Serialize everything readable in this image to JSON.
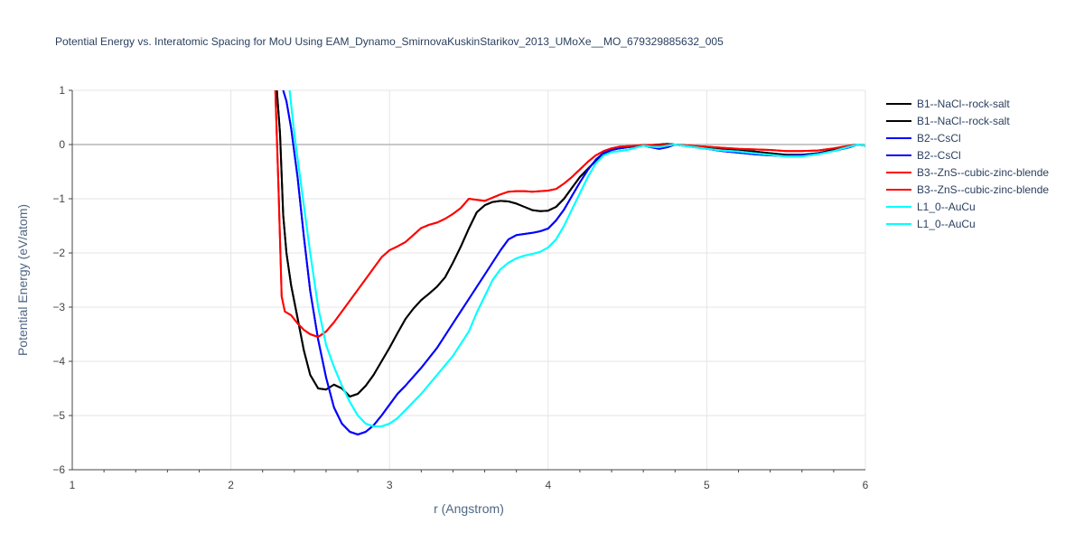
{
  "chart_data": {
    "type": "line",
    "title": "Potential Energy vs. Interatomic Spacing for MoU Using EAM_Dynamo_SmirnovaKuskinStarikov_2013_UMoXe__MO_679329885632_005",
    "xlabel": "r (Angstrom)",
    "ylabel": "Potential Energy (eV/atom)",
    "xlim": [
      1,
      6
    ],
    "ylim": [
      -6,
      1
    ],
    "x_ticks": [
      1,
      2,
      3,
      4,
      5,
      6
    ],
    "y_ticks": [
      -6,
      -5,
      -4,
      -3,
      -2,
      -1,
      0,
      1
    ],
    "x_tick_labels": [
      "1",
      "2",
      "3",
      "4",
      "5",
      "6"
    ],
    "y_tick_labels": [
      "−6",
      "−5",
      "−4",
      "−3",
      "−2",
      "−1",
      "0",
      "1"
    ],
    "grid": true,
    "legend_position": "right",
    "series": [
      {
        "name": "B1--NaCl--rock-salt",
        "color": "#000000",
        "x": [
          2.29,
          2.31,
          2.33,
          2.35,
          2.38,
          2.42,
          2.46,
          2.5,
          2.55,
          2.6,
          2.65,
          2.7,
          2.75,
          2.8,
          2.85,
          2.9,
          2.95,
          3.0,
          3.05,
          3.1,
          3.15,
          3.2,
          3.25,
          3.3,
          3.35,
          3.4,
          3.45,
          3.5,
          3.55,
          3.6,
          3.65,
          3.7,
          3.75,
          3.8,
          3.85,
          3.9,
          3.95,
          4.0,
          4.05,
          4.1,
          4.15,
          4.2,
          4.25,
          4.3,
          4.35,
          4.4,
          4.45,
          4.5,
          4.55,
          4.6,
          4.65,
          4.7,
          4.75,
          4.8,
          4.9,
          5.0,
          5.1,
          5.2,
          5.3,
          5.4,
          5.5,
          5.6,
          5.7,
          5.8,
          5.9,
          5.95,
          6.0
        ],
        "y": [
          1.0,
          0.2,
          -1.3,
          -2.0,
          -2.6,
          -3.2,
          -3.8,
          -4.25,
          -4.5,
          -4.52,
          -4.43,
          -4.5,
          -4.65,
          -4.6,
          -4.45,
          -4.25,
          -4.0,
          -3.75,
          -3.48,
          -3.22,
          -3.03,
          -2.87,
          -2.75,
          -2.62,
          -2.45,
          -2.18,
          -1.88,
          -1.55,
          -1.25,
          -1.12,
          -1.06,
          -1.04,
          -1.05,
          -1.09,
          -1.15,
          -1.21,
          -1.23,
          -1.22,
          -1.15,
          -1.0,
          -0.8,
          -0.6,
          -0.45,
          -0.3,
          -0.18,
          -0.1,
          -0.07,
          -0.05,
          -0.03,
          -0.02,
          -0.01,
          0.0,
          0.01,
          0.0,
          -0.04,
          -0.07,
          -0.09,
          -0.11,
          -0.13,
          -0.16,
          -0.19,
          -0.19,
          -0.16,
          -0.1,
          -0.03,
          0.0,
          -0.02
        ]
      },
      {
        "name": "B1--NaCl--rock-salt",
        "color": "#000000",
        "x": [
          2.29,
          2.31,
          2.33,
          2.35,
          2.38,
          2.42,
          2.46,
          2.5,
          2.55,
          2.6,
          2.65,
          2.7,
          2.75,
          2.8,
          2.85,
          2.9,
          2.95,
          3.0,
          3.05,
          3.1,
          3.15,
          3.2,
          3.25,
          3.3,
          3.35,
          3.4,
          3.45,
          3.5,
          3.55,
          3.6,
          3.65,
          3.7,
          3.75,
          3.8,
          3.85,
          3.9,
          3.95,
          4.0,
          4.05,
          4.1,
          4.15,
          4.2,
          4.25,
          4.3,
          4.35,
          4.4,
          4.45,
          4.5,
          4.55,
          4.6,
          4.65,
          4.7,
          4.75,
          4.8,
          4.9,
          5.0,
          5.1,
          5.2,
          5.3,
          5.4,
          5.5,
          5.6,
          5.7,
          5.8,
          5.9,
          5.95,
          6.0
        ],
        "y": [
          1.0,
          0.2,
          -1.3,
          -2.0,
          -2.6,
          -3.2,
          -3.8,
          -4.25,
          -4.5,
          -4.52,
          -4.43,
          -4.5,
          -4.65,
          -4.6,
          -4.45,
          -4.25,
          -4.0,
          -3.75,
          -3.48,
          -3.22,
          -3.03,
          -2.87,
          -2.75,
          -2.62,
          -2.45,
          -2.18,
          -1.88,
          -1.55,
          -1.25,
          -1.12,
          -1.06,
          -1.04,
          -1.05,
          -1.09,
          -1.15,
          -1.21,
          -1.23,
          -1.22,
          -1.15,
          -1.0,
          -0.8,
          -0.6,
          -0.45,
          -0.3,
          -0.18,
          -0.1,
          -0.07,
          -0.05,
          -0.03,
          -0.02,
          -0.01,
          0.0,
          0.01,
          0.0,
          -0.04,
          -0.07,
          -0.09,
          -0.11,
          -0.13,
          -0.16,
          -0.19,
          -0.19,
          -0.16,
          -0.1,
          -0.03,
          0.0,
          -0.02
        ]
      },
      {
        "name": "B2--CsCl",
        "color": "#0000ff",
        "x": [
          2.33,
          2.35,
          2.38,
          2.42,
          2.46,
          2.5,
          2.55,
          2.6,
          2.65,
          2.7,
          2.75,
          2.8,
          2.85,
          2.9,
          2.95,
          3.0,
          3.05,
          3.1,
          3.2,
          3.3,
          3.4,
          3.5,
          3.6,
          3.7,
          3.75,
          3.8,
          3.85,
          3.9,
          3.95,
          4.0,
          4.05,
          4.1,
          4.15,
          4.2,
          4.25,
          4.3,
          4.35,
          4.4,
          4.45,
          4.5,
          4.55,
          4.6,
          4.65,
          4.7,
          4.75,
          4.8,
          4.9,
          5.0,
          5.1,
          5.2,
          5.3,
          5.4,
          5.5,
          5.6,
          5.7,
          5.8,
          5.9,
          5.95,
          6.0
        ],
        "y": [
          1.0,
          0.8,
          0.3,
          -0.6,
          -1.7,
          -2.7,
          -3.6,
          -4.3,
          -4.85,
          -5.15,
          -5.3,
          -5.35,
          -5.3,
          -5.18,
          -5.0,
          -4.8,
          -4.6,
          -4.45,
          -4.12,
          -3.75,
          -3.3,
          -2.85,
          -2.4,
          -1.95,
          -1.75,
          -1.67,
          -1.65,
          -1.63,
          -1.6,
          -1.55,
          -1.4,
          -1.2,
          -0.95,
          -0.7,
          -0.47,
          -0.28,
          -0.15,
          -0.1,
          -0.07,
          -0.05,
          -0.03,
          -0.02,
          -0.05,
          -0.08,
          -0.05,
          0.0,
          -0.04,
          -0.08,
          -0.12,
          -0.15,
          -0.18,
          -0.2,
          -0.21,
          -0.2,
          -0.17,
          -0.12,
          -0.05,
          0.0,
          -0.02
        ]
      },
      {
        "name": "B2--CsCl",
        "color": "#0000ff",
        "x": [
          2.33,
          2.35,
          2.38,
          2.42,
          2.46,
          2.5,
          2.55,
          2.6,
          2.65,
          2.7,
          2.75,
          2.8,
          2.85,
          2.9,
          2.95,
          3.0,
          3.05,
          3.1,
          3.2,
          3.3,
          3.4,
          3.5,
          3.6,
          3.7,
          3.75,
          3.8,
          3.85,
          3.9,
          3.95,
          4.0,
          4.05,
          4.1,
          4.15,
          4.2,
          4.25,
          4.3,
          4.35,
          4.4,
          4.45,
          4.5,
          4.55,
          4.6,
          4.65,
          4.7,
          4.75,
          4.8,
          4.9,
          5.0,
          5.1,
          5.2,
          5.3,
          5.4,
          5.5,
          5.6,
          5.7,
          5.8,
          5.9,
          5.95,
          6.0
        ],
        "y": [
          1.0,
          0.8,
          0.3,
          -0.6,
          -1.7,
          -2.7,
          -3.6,
          -4.3,
          -4.85,
          -5.15,
          -5.3,
          -5.35,
          -5.3,
          -5.18,
          -5.0,
          -4.8,
          -4.6,
          -4.45,
          -4.12,
          -3.75,
          -3.3,
          -2.85,
          -2.4,
          -1.95,
          -1.75,
          -1.67,
          -1.65,
          -1.63,
          -1.6,
          -1.55,
          -1.4,
          -1.2,
          -0.95,
          -0.7,
          -0.47,
          -0.28,
          -0.15,
          -0.1,
          -0.07,
          -0.05,
          -0.03,
          -0.02,
          -0.05,
          -0.08,
          -0.05,
          0.0,
          -0.04,
          -0.08,
          -0.12,
          -0.15,
          -0.18,
          -0.2,
          -0.21,
          -0.2,
          -0.17,
          -0.12,
          -0.05,
          0.0,
          -0.02
        ]
      },
      {
        "name": "B3--ZnS--cubic-zinc-blende",
        "color": "#ff0000",
        "x": [
          2.28,
          2.3,
          2.32,
          2.34,
          2.38,
          2.42,
          2.46,
          2.5,
          2.55,
          2.6,
          2.65,
          2.7,
          2.75,
          2.8,
          2.85,
          2.9,
          2.95,
          3.0,
          3.05,
          3.1,
          3.15,
          3.2,
          3.25,
          3.3,
          3.35,
          3.4,
          3.45,
          3.5,
          3.55,
          3.6,
          3.65,
          3.7,
          3.75,
          3.8,
          3.85,
          3.9,
          3.95,
          4.0,
          4.05,
          4.1,
          4.15,
          4.2,
          4.25,
          4.3,
          4.35,
          4.4,
          4.45,
          4.5,
          4.55,
          4.6,
          4.7,
          4.8,
          4.9,
          5.0,
          5.1,
          5.2,
          5.3,
          5.4,
          5.5,
          5.6,
          5.7,
          5.8,
          5.9,
          5.95,
          6.0
        ],
        "y": [
          1.0,
          -0.8,
          -2.8,
          -3.08,
          -3.15,
          -3.3,
          -3.42,
          -3.5,
          -3.55,
          -3.45,
          -3.28,
          -3.08,
          -2.88,
          -2.68,
          -2.48,
          -2.28,
          -2.08,
          -1.95,
          -1.88,
          -1.8,
          -1.67,
          -1.54,
          -1.48,
          -1.44,
          -1.37,
          -1.28,
          -1.17,
          -1.0,
          -1.02,
          -1.04,
          -0.98,
          -0.92,
          -0.87,
          -0.86,
          -0.86,
          -0.87,
          -0.86,
          -0.85,
          -0.82,
          -0.72,
          -0.6,
          -0.46,
          -0.32,
          -0.2,
          -0.12,
          -0.07,
          -0.04,
          -0.03,
          -0.02,
          -0.01,
          -0.01,
          0.0,
          -0.02,
          -0.04,
          -0.06,
          -0.08,
          -0.09,
          -0.1,
          -0.12,
          -0.12,
          -0.11,
          -0.07,
          -0.02,
          0.0,
          -0.02
        ]
      },
      {
        "name": "B3--ZnS--cubic-zinc-blende",
        "color": "#ff0000",
        "x": [
          2.28,
          2.3,
          2.32,
          2.34,
          2.38,
          2.42,
          2.46,
          2.5,
          2.55,
          2.6,
          2.65,
          2.7,
          2.75,
          2.8,
          2.85,
          2.9,
          2.95,
          3.0,
          3.05,
          3.1,
          3.15,
          3.2,
          3.25,
          3.3,
          3.35,
          3.4,
          3.45,
          3.5,
          3.55,
          3.6,
          3.65,
          3.7,
          3.75,
          3.8,
          3.85,
          3.9,
          3.95,
          4.0,
          4.05,
          4.1,
          4.15,
          4.2,
          4.25,
          4.3,
          4.35,
          4.4,
          4.45,
          4.5,
          4.55,
          4.6,
          4.7,
          4.8,
          4.9,
          5.0,
          5.1,
          5.2,
          5.3,
          5.4,
          5.5,
          5.6,
          5.7,
          5.8,
          5.9,
          5.95,
          6.0
        ],
        "y": [
          1.0,
          -0.8,
          -2.8,
          -3.08,
          -3.15,
          -3.3,
          -3.42,
          -3.5,
          -3.55,
          -3.45,
          -3.28,
          -3.08,
          -2.88,
          -2.68,
          -2.48,
          -2.28,
          -2.08,
          -1.95,
          -1.88,
          -1.8,
          -1.67,
          -1.54,
          -1.48,
          -1.44,
          -1.37,
          -1.28,
          -1.17,
          -1.0,
          -1.02,
          -1.04,
          -0.98,
          -0.92,
          -0.87,
          -0.86,
          -0.86,
          -0.87,
          -0.86,
          -0.85,
          -0.82,
          -0.72,
          -0.6,
          -0.46,
          -0.32,
          -0.2,
          -0.12,
          -0.07,
          -0.04,
          -0.03,
          -0.02,
          -0.01,
          -0.01,
          0.0,
          -0.02,
          -0.04,
          -0.06,
          -0.08,
          -0.09,
          -0.1,
          -0.12,
          -0.12,
          -0.11,
          -0.07,
          -0.02,
          0.0,
          -0.02
        ]
      },
      {
        "name": "L1_0--AuCu",
        "color": "#00ffff",
        "x": [
          2.37,
          2.4,
          2.45,
          2.5,
          2.55,
          2.6,
          2.65,
          2.7,
          2.75,
          2.8,
          2.85,
          2.9,
          2.95,
          3.0,
          3.05,
          3.1,
          3.2,
          3.3,
          3.4,
          3.5,
          3.55,
          3.6,
          3.65,
          3.7,
          3.75,
          3.8,
          3.85,
          3.9,
          3.95,
          4.0,
          4.05,
          4.1,
          4.15,
          4.2,
          4.25,
          4.3,
          4.35,
          4.4,
          4.45,
          4.5,
          4.55,
          4.6,
          4.65,
          4.7,
          4.75,
          4.8,
          4.9,
          5.0,
          5.1,
          5.2,
          5.3,
          5.4,
          5.5,
          5.6,
          5.7,
          5.8,
          5.9,
          5.95,
          6.0
        ],
        "y": [
          1.0,
          0.2,
          -0.9,
          -2.0,
          -3.0,
          -3.7,
          -4.1,
          -4.45,
          -4.75,
          -5.0,
          -5.15,
          -5.2,
          -5.2,
          -5.15,
          -5.05,
          -4.9,
          -4.6,
          -4.25,
          -3.9,
          -3.45,
          -3.1,
          -2.8,
          -2.5,
          -2.3,
          -2.18,
          -2.1,
          -2.05,
          -2.02,
          -1.98,
          -1.9,
          -1.75,
          -1.5,
          -1.2,
          -0.9,
          -0.6,
          -0.35,
          -0.2,
          -0.14,
          -0.12,
          -0.1,
          -0.06,
          -0.02,
          -0.04,
          -0.05,
          -0.02,
          0.0,
          -0.04,
          -0.08,
          -0.11,
          -0.13,
          -0.16,
          -0.19,
          -0.22,
          -0.22,
          -0.18,
          -0.12,
          -0.04,
          0.0,
          -0.02
        ]
      },
      {
        "name": "L1_0--AuCu",
        "color": "#00ffff",
        "x": [
          2.37,
          2.4,
          2.45,
          2.5,
          2.55,
          2.6,
          2.65,
          2.7,
          2.75,
          2.8,
          2.85,
          2.9,
          2.95,
          3.0,
          3.05,
          3.1,
          3.2,
          3.3,
          3.4,
          3.5,
          3.55,
          3.6,
          3.65,
          3.7,
          3.75,
          3.8,
          3.85,
          3.9,
          3.95,
          4.0,
          4.05,
          4.1,
          4.15,
          4.2,
          4.25,
          4.3,
          4.35,
          4.4,
          4.45,
          4.5,
          4.55,
          4.6,
          4.65,
          4.7,
          4.75,
          4.8,
          4.9,
          5.0,
          5.1,
          5.2,
          5.3,
          5.4,
          5.5,
          5.6,
          5.7,
          5.8,
          5.9,
          5.95,
          6.0
        ],
        "y": [
          1.0,
          0.2,
          -0.9,
          -2.0,
          -3.0,
          -3.7,
          -4.1,
          -4.45,
          -4.75,
          -5.0,
          -5.15,
          -5.2,
          -5.2,
          -5.15,
          -5.05,
          -4.9,
          -4.6,
          -4.25,
          -3.9,
          -3.45,
          -3.1,
          -2.8,
          -2.5,
          -2.3,
          -2.18,
          -2.1,
          -2.05,
          -2.02,
          -1.98,
          -1.9,
          -1.75,
          -1.5,
          -1.2,
          -0.9,
          -0.6,
          -0.35,
          -0.2,
          -0.14,
          -0.12,
          -0.1,
          -0.06,
          -0.02,
          -0.04,
          -0.05,
          -0.02,
          0.0,
          -0.04,
          -0.08,
          -0.11,
          -0.13,
          -0.16,
          -0.19,
          -0.22,
          -0.22,
          -0.18,
          -0.12,
          -0.04,
          0.0,
          -0.02
        ]
      }
    ]
  }
}
